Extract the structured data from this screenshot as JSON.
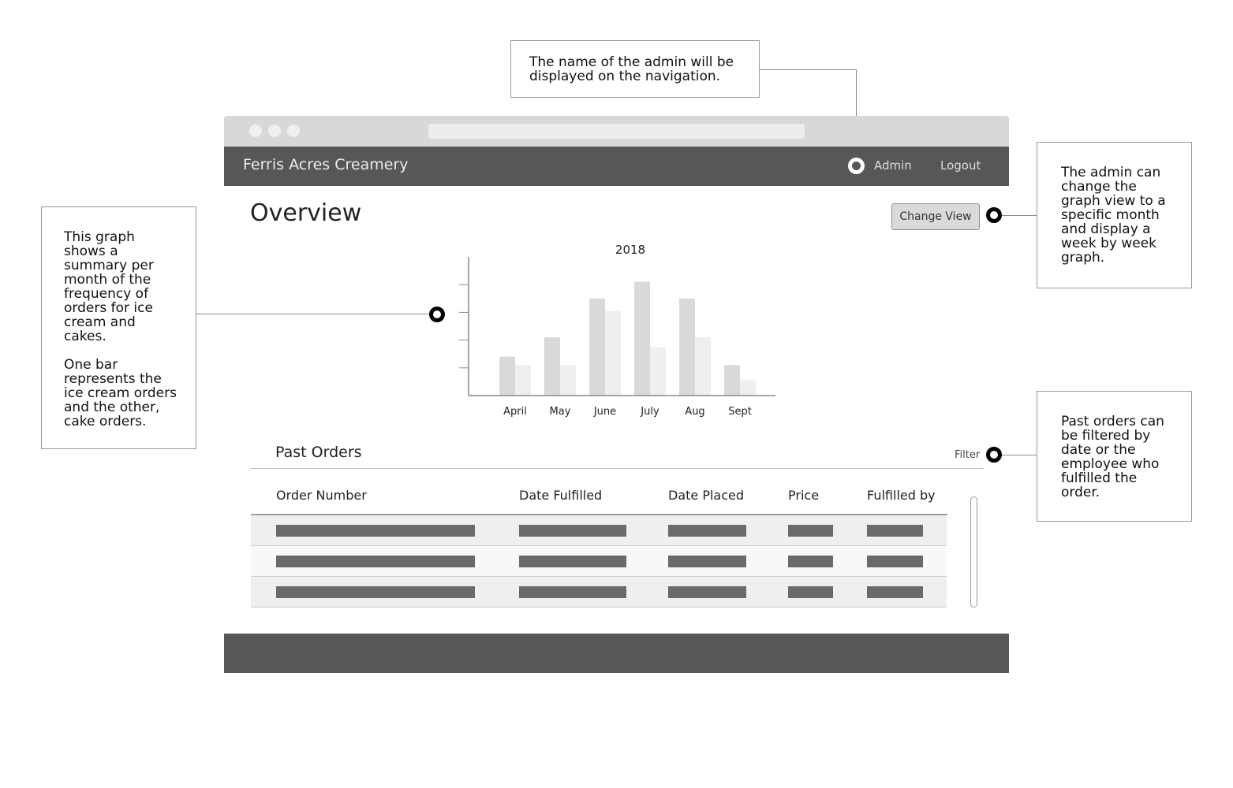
{
  "app": {
    "title": "Ferris Acres Creamery"
  },
  "nav": {
    "admin_label": "Admin",
    "logout_label": "Logout"
  },
  "page": {
    "title": "Overview",
    "change_view_label": "Change View"
  },
  "chart_data": {
    "type": "bar",
    "title": "2018",
    "categories": [
      "April",
      "May",
      "June",
      "July",
      "Aug",
      "Sept"
    ],
    "series": [
      {
        "values": [
          28,
          42,
          70,
          82,
          70,
          22
        ],
        "color": "#d9d9d9"
      },
      {
        "values": [
          22,
          22,
          61,
          35,
          42,
          11
        ],
        "color": "#efefef"
      }
    ],
    "ylim": [
      0,
      100
    ],
    "grid": false
  },
  "past_orders": {
    "title": "Past Orders",
    "filter_label": "Filter",
    "columns": [
      "Order Number",
      "Date Fulfilled",
      "Date Placed",
      "Price",
      "Fulfilled by"
    ],
    "row_colors": [
      "#efefef",
      "#f8f8f8",
      "#efefef"
    ]
  },
  "annotations": {
    "admin_name": "The name of the admin will be displayed on the navigation.",
    "graph_1": "This graph shows a summary per month of the frequency of orders for ice cream and cakes.",
    "graph_2": "One bar represents the ice cream orders and the other, cake orders.",
    "change_view": "The admin can change the graph view to a specific month and display a week by week graph.",
    "filter": "Past orders can be filtered by date or the employee who fulfilled the order."
  }
}
